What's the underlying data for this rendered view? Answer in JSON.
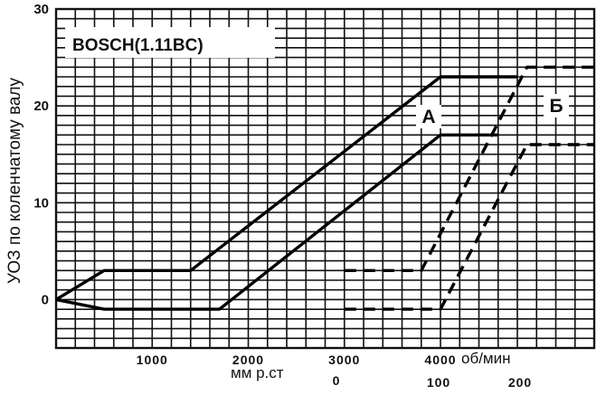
{
  "chart_data": {
    "type": "line",
    "box_label": "BOSCH(1.11BC)",
    "ylabel": "УОЗ по коленчатому валу",
    "ylim": [
      -5,
      30
    ],
    "yticks": [
      0,
      10,
      20,
      30
    ],
    "x_rpm": {
      "xlim": [
        0,
        5600
      ],
      "ticks": [
        1000,
        2000,
        3000,
        4000
      ],
      "unit_label": "об/мин"
    },
    "x_vac": {
      "unit_label": "мм р.ст",
      "ticks": [
        "0",
        "100",
        "200"
      ]
    },
    "series": [
      {
        "label": "А",
        "style": "solid",
        "lines": [
          {
            "axis": "rpm",
            "points": [
              [
                0,
                0
              ],
              [
                500,
                3
              ],
              [
                1400,
                3
              ],
              [
                4000,
                23
              ],
              [
                4800,
                23
              ]
            ]
          },
          {
            "axis": "rpm",
            "points": [
              [
                0,
                0
              ],
              [
                500,
                -1
              ],
              [
                1700,
                -1
              ],
              [
                4000,
                17
              ],
              [
                4600,
                17
              ]
            ]
          }
        ]
      },
      {
        "label": "Б",
        "style": "dashed",
        "lines": [
          {
            "axis": "rpm",
            "points": [
              [
                3000,
                3
              ],
              [
                3800,
                3
              ],
              [
                4900,
                24
              ],
              [
                5600,
                24
              ]
            ]
          },
          {
            "axis": "rpm",
            "points": [
              [
                3000,
                -1
              ],
              [
                4000,
                -1
              ],
              [
                4900,
                16
              ],
              [
                5600,
                16
              ]
            ]
          }
        ]
      }
    ],
    "grid": true
  }
}
